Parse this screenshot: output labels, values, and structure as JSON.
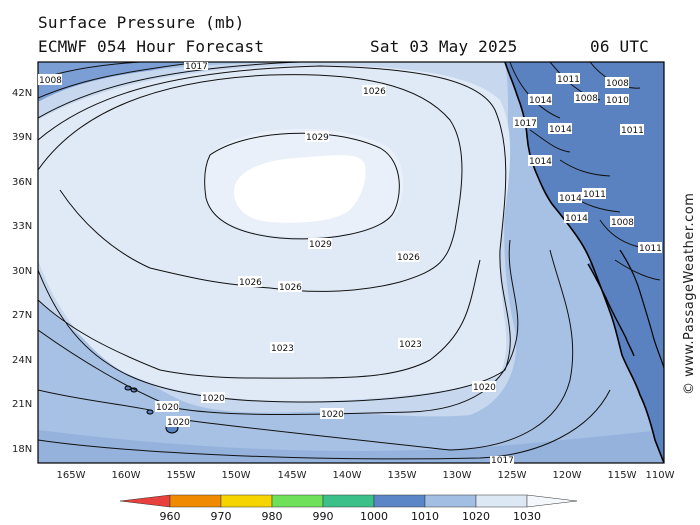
{
  "title": "Surface Pressure (mb)",
  "model_line": "ECMWF 054 Hour Forecast",
  "date_line": "Sat 03 May 2025",
  "time_line": "06 UTC",
  "copyright": "© www.PassageWeather.com",
  "lat_labels": [
    "42N",
    "39N",
    "36N",
    "33N",
    "30N",
    "27N",
    "24N",
    "21N",
    "18N"
  ],
  "lon_labels": [
    "165W",
    "160W",
    "155W",
    "150W",
    "145W",
    "140W",
    "135W",
    "130W",
    "125W",
    "120W",
    "115W",
    "110W"
  ],
  "isobar_labels": {
    "isobar_1029_a": "1029",
    "isobar_1029_b": "1029",
    "isobar_1026_a": "1026",
    "isobar_1026_b": "1026",
    "isobar_1026_c": "1026",
    "isobar_1026_d": "1026",
    "isobar_1023_a": "1023",
    "isobar_1023_b": "1023",
    "isobar_1020_a": "1020",
    "isobar_1020_b": "1020",
    "isobar_1020_c": "1020",
    "isobar_1020_d": "1020",
    "isobar_1020_e": "1020",
    "isobar_1017_a": "1017",
    "isobar_1017_b": "1017",
    "isobar_1017_c": "1017",
    "isobar_1011_a": "1011",
    "isobar_1011_b": "1011",
    "isobar_1011_c": "1011",
    "isobar_1011_d": "1011",
    "isobar_1014_a": "1014",
    "isobar_1014_b": "1014",
    "isobar_1014_c": "1014",
    "isobar_1014_d": "1014",
    "isobar_1014_e": "1014",
    "isobar_1008_a": "1008",
    "isobar_1008_b": "1008",
    "isobar_1008_c": "1008",
    "isobar_1008_d": "1008",
    "isobar_1010_a": "1010"
  },
  "colorbar": {
    "labels": [
      "960",
      "970",
      "980",
      "990",
      "1000",
      "1010",
      "1020",
      "1030"
    ],
    "colors": [
      "#e8403c",
      "#f08a00",
      "#f6d400",
      "#6ee05a",
      "#3cc08a",
      "#5a86c8",
      "#a2bee2",
      "#dde8f5"
    ]
  },
  "colors": {
    "ocean_low": "#7b9fd4",
    "ocean_1017": "#94b2dc",
    "ocean_1020": "#a7c1e4",
    "ocean_1023": "#c6d7ee",
    "ocean_1026": "#e0e9f6",
    "ocean_1029": "#eaf0f9",
    "high_core": "#ffffff",
    "land": "#5b82c0",
    "coast": "#000000",
    "isobar": "#111111"
  }
}
